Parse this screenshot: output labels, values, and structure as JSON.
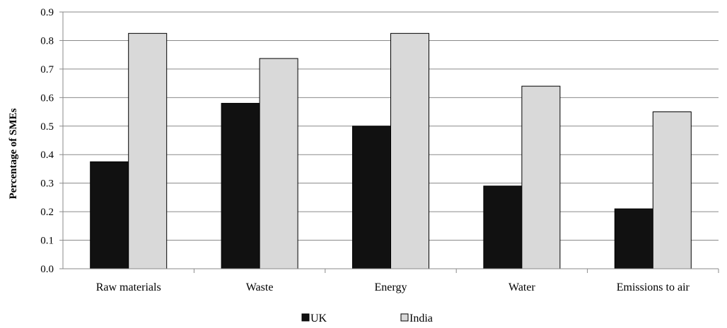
{
  "chart_data": {
    "type": "bar",
    "categories": [
      "Raw materials",
      "Waste",
      "Energy",
      "Water",
      "Emissions to air"
    ],
    "series": [
      {
        "name": "UK",
        "values": [
          0.375,
          0.58,
          0.5,
          0.29,
          0.21
        ],
        "color": "#111111"
      },
      {
        "name": "India",
        "values": [
          0.825,
          0.737,
          0.825,
          0.64,
          0.55
        ],
        "color": "#d9d9d9"
      }
    ],
    "title": "",
    "xlabel": "",
    "ylabel": "Percentage of SMEs",
    "ylim": [
      0,
      0.9
    ],
    "yticks": [
      "0.0",
      "0.1",
      "0.2",
      "0.3",
      "0.4",
      "0.5",
      "0.6",
      "0.7",
      "0.8",
      "0.9"
    ],
    "grid": true,
    "legend_position": "bottom"
  }
}
